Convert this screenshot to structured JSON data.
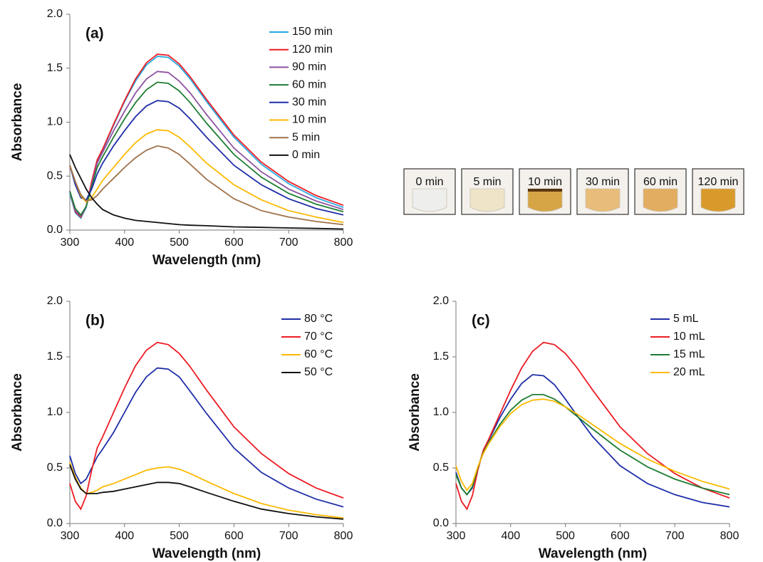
{
  "chart_data": [
    {
      "type": "line",
      "label": "(a)",
      "xlabel": "Wavelength (nm)",
      "ylabel": "Absorbance",
      "x": [
        300,
        310,
        320,
        330,
        340,
        350,
        360,
        380,
        400,
        420,
        440,
        460,
        480,
        500,
        520,
        550,
        600,
        650,
        700,
        750,
        800
      ],
      "xlim": [
        300,
        800
      ],
      "xticks": [
        300,
        400,
        500,
        600,
        700,
        800
      ],
      "ylim": [
        0,
        2
      ],
      "yticks": [
        {
          "value": 0,
          "label": "0.0"
        },
        0.5,
        {
          "value": 1,
          "label": "1.0"
        },
        1.5,
        {
          "value": 2,
          "label": "2.0"
        }
      ],
      "legend": "upper right",
      "series": [
        {
          "name": "150 min",
          "color": "#29a8e0",
          "values": [
            0.34,
            0.16,
            0.11,
            0.21,
            0.44,
            0.64,
            0.74,
            0.97,
            1.19,
            1.38,
            1.53,
            1.61,
            1.6,
            1.52,
            1.4,
            1.19,
            0.86,
            0.61,
            0.43,
            0.3,
            0.21
          ]
        },
        {
          "name": "120 min",
          "color": "#ed1c24",
          "values": [
            0.36,
            0.17,
            0.12,
            0.22,
            0.45,
            0.65,
            0.75,
            0.98,
            1.2,
            1.4,
            1.55,
            1.63,
            1.62,
            1.54,
            1.42,
            1.21,
            0.88,
            0.63,
            0.45,
            0.32,
            0.23
          ]
        },
        {
          "name": "90 min",
          "color": "#8e52a1",
          "values": [
            0.36,
            0.18,
            0.13,
            0.22,
            0.42,
            0.62,
            0.72,
            0.92,
            1.1,
            1.27,
            1.4,
            1.47,
            1.46,
            1.38,
            1.27,
            1.07,
            0.76,
            0.54,
            0.38,
            0.27,
            0.19
          ]
        },
        {
          "name": "60 min",
          "color": "#1e7d32",
          "values": [
            0.36,
            0.2,
            0.14,
            0.22,
            0.4,
            0.58,
            0.68,
            0.86,
            1.03,
            1.18,
            1.3,
            1.37,
            1.36,
            1.29,
            1.18,
            0.99,
            0.7,
            0.49,
            0.34,
            0.24,
            0.17
          ]
        },
        {
          "name": "30 min",
          "color": "#1f2ea8",
          "values": [
            0.6,
            0.42,
            0.3,
            0.28,
            0.38,
            0.52,
            0.62,
            0.78,
            0.92,
            1.05,
            1.15,
            1.2,
            1.19,
            1.13,
            1.03,
            0.86,
            0.6,
            0.42,
            0.29,
            0.2,
            0.14
          ]
        },
        {
          "name": "10 min",
          "color": "#fbb900",
          "values": [
            0.6,
            0.45,
            0.32,
            0.26,
            0.3,
            0.38,
            0.46,
            0.58,
            0.7,
            0.81,
            0.89,
            0.93,
            0.92,
            0.86,
            0.77,
            0.62,
            0.42,
            0.28,
            0.18,
            0.12,
            0.07
          ]
        },
        {
          "name": "5 min",
          "color": "#a0724a",
          "values": [
            0.6,
            0.45,
            0.33,
            0.27,
            0.28,
            0.32,
            0.38,
            0.48,
            0.58,
            0.67,
            0.74,
            0.78,
            0.76,
            0.7,
            0.61,
            0.47,
            0.29,
            0.18,
            0.12,
            0.08,
            0.05
          ]
        },
        {
          "name": "0 min",
          "color": "#111111",
          "values": [
            0.7,
            0.58,
            0.48,
            0.38,
            0.3,
            0.24,
            0.19,
            0.14,
            0.11,
            0.09,
            0.08,
            0.07,
            0.06,
            0.05,
            0.045,
            0.04,
            0.03,
            0.025,
            0.02,
            0.015,
            0.01
          ]
        }
      ]
    },
    {
      "type": "line",
      "label": "(b)",
      "xlabel": "Wavelength (nm)",
      "ylabel": "Absorbance",
      "x": [
        300,
        310,
        320,
        330,
        340,
        350,
        360,
        380,
        400,
        420,
        440,
        460,
        480,
        500,
        520,
        550,
        600,
        650,
        700,
        750,
        800
      ],
      "xlim": [
        300,
        800
      ],
      "xticks": [
        300,
        400,
        500,
        600,
        700,
        800
      ],
      "ylim": [
        0,
        2
      ],
      "yticks": [
        {
          "value": 0,
          "label": "0.0"
        },
        0.5,
        {
          "value": 1,
          "label": "1.0"
        },
        1.5,
        {
          "value": 2,
          "label": "2.0"
        }
      ],
      "legend": "upper right",
      "series": [
        {
          "name": "80 °C",
          "color": "#1f2ea8",
          "values": [
            0.61,
            0.45,
            0.36,
            0.4,
            0.5,
            0.6,
            0.67,
            0.82,
            1.0,
            1.18,
            1.32,
            1.4,
            1.39,
            1.32,
            1.19,
            0.99,
            0.68,
            0.46,
            0.32,
            0.22,
            0.15
          ]
        },
        {
          "name": "70 °C",
          "color": "#ed1c24",
          "values": [
            0.36,
            0.2,
            0.13,
            0.25,
            0.48,
            0.68,
            0.78,
            1.0,
            1.22,
            1.42,
            1.56,
            1.63,
            1.61,
            1.53,
            1.41,
            1.2,
            0.87,
            0.63,
            0.45,
            0.32,
            0.23
          ]
        },
        {
          "name": "60 °C",
          "color": "#fbb900",
          "values": [
            0.55,
            0.42,
            0.32,
            0.27,
            0.28,
            0.3,
            0.33,
            0.36,
            0.4,
            0.44,
            0.48,
            0.5,
            0.51,
            0.49,
            0.45,
            0.38,
            0.27,
            0.18,
            0.12,
            0.08,
            0.05
          ]
        },
        {
          "name": "50 °C",
          "color": "#111111",
          "values": [
            0.53,
            0.4,
            0.31,
            0.27,
            0.27,
            0.27,
            0.28,
            0.29,
            0.31,
            0.33,
            0.35,
            0.37,
            0.37,
            0.36,
            0.33,
            0.28,
            0.2,
            0.13,
            0.09,
            0.06,
            0.04
          ]
        }
      ]
    },
    {
      "type": "line",
      "label": "(c)",
      "xlabel": "Wavelength (nm)",
      "ylabel": "Absorbance",
      "x": [
        300,
        310,
        320,
        330,
        340,
        350,
        360,
        380,
        400,
        420,
        440,
        460,
        480,
        500,
        520,
        550,
        600,
        650,
        700,
        750,
        800
      ],
      "xlim": [
        300,
        800
      ],
      "xticks": [
        300,
        400,
        500,
        600,
        700,
        800
      ],
      "ylim": [
        0,
        2
      ],
      "yticks": [
        {
          "value": 0,
          "label": "0.0"
        },
        0.5,
        {
          "value": 1,
          "label": "1.0"
        },
        1.5,
        {
          "value": 2,
          "label": "2.0"
        }
      ],
      "legend": "upper right",
      "series": [
        {
          "name": "5 mL",
          "color": "#1f2ea8",
          "values": [
            0.46,
            0.32,
            0.26,
            0.32,
            0.5,
            0.65,
            0.75,
            0.95,
            1.12,
            1.26,
            1.34,
            1.33,
            1.25,
            1.12,
            0.98,
            0.78,
            0.52,
            0.36,
            0.26,
            0.19,
            0.15
          ]
        },
        {
          "name": "10 mL",
          "color": "#ed1c24",
          "values": [
            0.36,
            0.2,
            0.13,
            0.25,
            0.48,
            0.66,
            0.76,
            0.98,
            1.2,
            1.4,
            1.55,
            1.63,
            1.61,
            1.53,
            1.41,
            1.2,
            0.87,
            0.63,
            0.45,
            0.32,
            0.23
          ]
        },
        {
          "name": "15 mL",
          "color": "#1e7d32",
          "values": [
            0.44,
            0.32,
            0.26,
            0.33,
            0.5,
            0.64,
            0.73,
            0.89,
            1.02,
            1.11,
            1.16,
            1.16,
            1.12,
            1.05,
            0.97,
            0.85,
            0.66,
            0.51,
            0.4,
            0.32,
            0.26
          ]
        },
        {
          "name": "20 mL",
          "color": "#fbb900",
          "values": [
            0.52,
            0.38,
            0.3,
            0.36,
            0.51,
            0.63,
            0.72,
            0.87,
            0.99,
            1.07,
            1.11,
            1.12,
            1.1,
            1.05,
            0.99,
            0.89,
            0.72,
            0.58,
            0.47,
            0.38,
            0.31
          ]
        }
      ]
    }
  ],
  "photos": {
    "labels": [
      "0 min",
      "5 min",
      "10 min",
      "30 min",
      "60 min",
      "120 min"
    ]
  }
}
